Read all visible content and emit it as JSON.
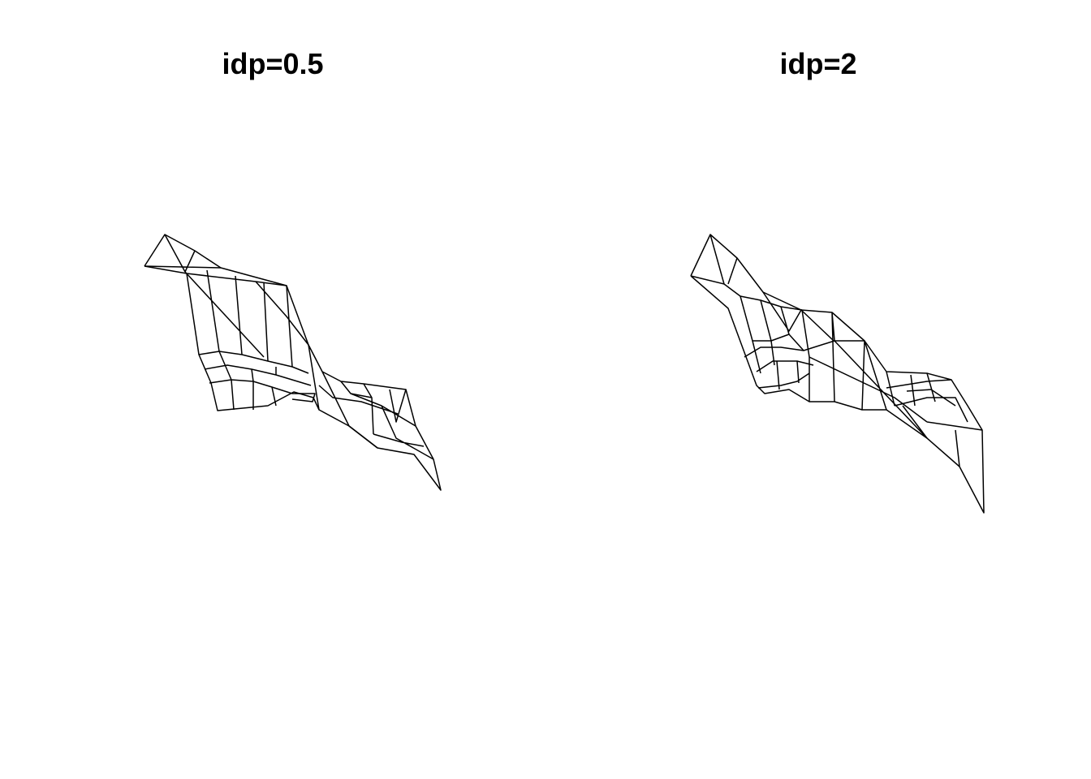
{
  "panels": [
    {
      "title": "idp=0.5"
    },
    {
      "title": "idp=2"
    }
  ],
  "colors": {
    "wireframe": "#000000",
    "background": "#ffffff"
  }
}
